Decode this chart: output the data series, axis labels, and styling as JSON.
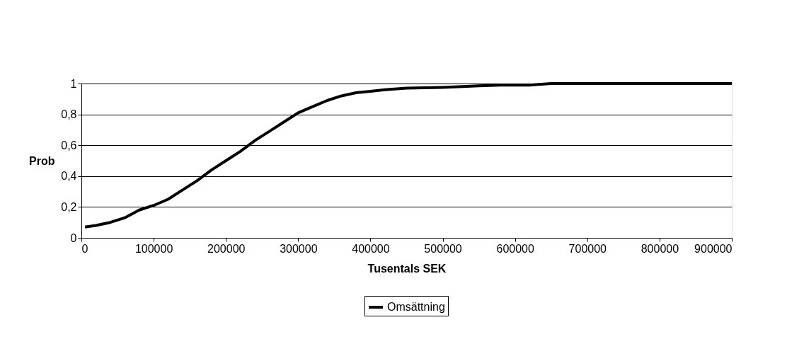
{
  "chart_data": {
    "type": "line",
    "xlabel": "Tusentals SEK",
    "ylabel": "Prob",
    "x": [
      5000,
      20000,
      40000,
      60000,
      80000,
      100000,
      120000,
      140000,
      160000,
      180000,
      200000,
      220000,
      240000,
      260000,
      280000,
      300000,
      320000,
      340000,
      360000,
      380000,
      400000,
      420000,
      450000,
      500000,
      550000,
      580000,
      620000,
      650000,
      900000
    ],
    "series": [
      {
        "name": "Omsättning",
        "color": "#000000",
        "values": [
          0.07,
          0.08,
          0.1,
          0.13,
          0.18,
          0.21,
          0.25,
          0.31,
          0.37,
          0.44,
          0.5,
          0.56,
          0.63,
          0.69,
          0.75,
          0.81,
          0.85,
          0.89,
          0.92,
          0.94,
          0.95,
          0.96,
          0.97,
          0.975,
          0.985,
          0.99,
          0.99,
          1.0,
          1.0
        ]
      }
    ],
    "xlim": [
      0,
      900000
    ],
    "xticks": [
      0,
      100000,
      200000,
      300000,
      400000,
      500000,
      600000,
      700000,
      800000,
      900000
    ],
    "ylim": [
      0,
      1
    ],
    "yticks": [
      0,
      {
        "value": 0.2,
        "label": "0,2"
      },
      {
        "value": 0.4,
        "label": "0,4"
      },
      {
        "value": 0.6,
        "label": "0,6"
      },
      {
        "value": 0.8,
        "label": "0,8"
      },
      1
    ],
    "grid": "y",
    "legend": "bottom",
    "marker": "none",
    "line_style": "solid"
  }
}
